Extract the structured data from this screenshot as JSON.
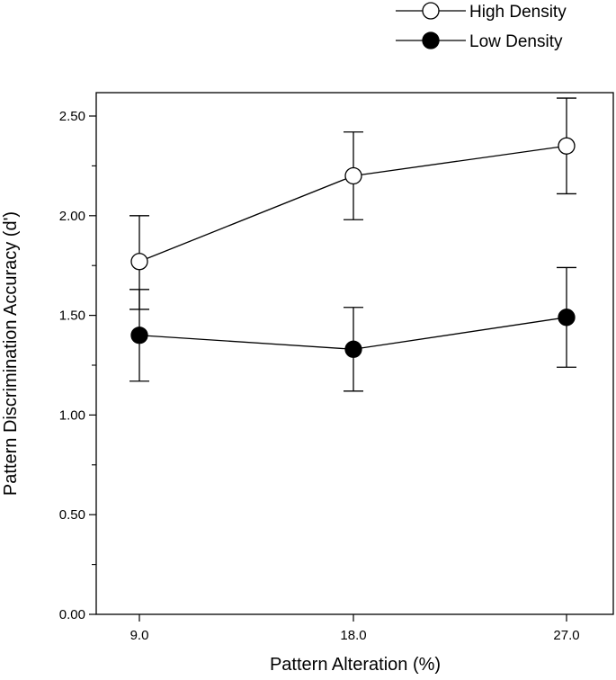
{
  "chart_data": {
    "type": "line",
    "title": "",
    "xlabel": "Pattern Alteration (%)",
    "ylabel": "Pattern Discrimination Accuracy (d')",
    "x": [
      9.0,
      18.0,
      27.0
    ],
    "x_tick_labels": [
      "9.0",
      "18.0",
      "27.0"
    ],
    "ylim": [
      0.0,
      2.6
    ],
    "y_ticks": [
      0.0,
      0.5,
      1.0,
      1.5,
      2.0,
      2.5
    ],
    "y_tick_labels": [
      "0.00",
      "0.50",
      "1.00",
      "1.50",
      "2.00",
      "2.50"
    ],
    "grid": false,
    "legend_position": "top-right",
    "series": [
      {
        "name": "High Density",
        "marker": "open-circle",
        "values": [
          1.77,
          2.2,
          2.35
        ],
        "error_low": [
          1.53,
          1.98,
          2.11
        ],
        "error_high": [
          2.0,
          2.42,
          2.59
        ]
      },
      {
        "name": "Low Density",
        "marker": "filled-circle",
        "values": [
          1.4,
          1.33,
          1.49
        ],
        "error_low": [
          1.17,
          1.12,
          1.24
        ],
        "error_high": [
          1.63,
          1.54,
          1.74
        ]
      }
    ]
  }
}
